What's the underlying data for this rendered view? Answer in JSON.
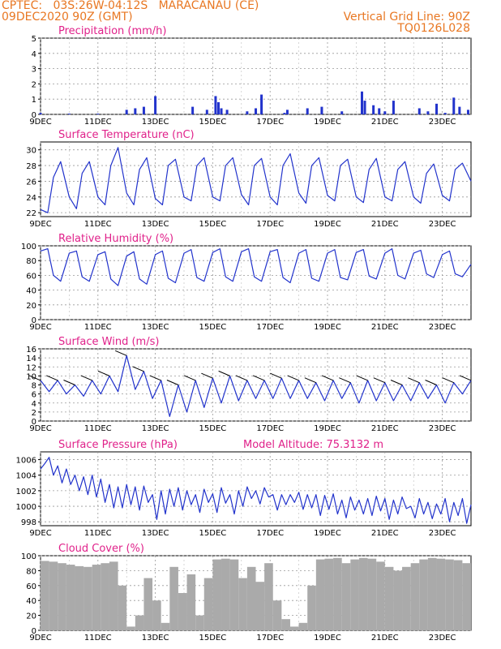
{
  "header": {
    "line1": "CPTEC:   03S:26W-04:12S   MARACANAU (CE)",
    "line2": "09DEC2020 90Z (GMT)",
    "vgrid": "Vertical Grid Line: 90Z",
    "model": "TQ0126L028"
  },
  "colors": {
    "header": "#e87722",
    "title": "#e0218a",
    "series": "#2233cc",
    "bars": "#aaaaaa"
  },
  "chart_data": [
    {
      "type": "bar",
      "title": "Precipitation (mm/h)",
      "x_labels": [
        "9DEC",
        "11DEC",
        "13DEC",
        "15DEC",
        "17DEC",
        "19DEC",
        "21DEC",
        "23DEC"
      ],
      "ylim": [
        0,
        5
      ],
      "y_ticks": [
        "0",
        "1",
        "2",
        "3",
        "4",
        "5"
      ],
      "grid": true,
      "x": [
        0,
        1,
        2,
        3,
        3.3,
        3.6,
        4,
        5.3,
        5.8,
        6.1,
        6.2,
        6.3,
        6.5,
        7.2,
        7.5,
        7.7,
        8.5,
        8.6,
        9.3,
        9.8,
        10.5,
        11.2,
        11.3,
        11.6,
        11.8,
        12,
        12.3,
        13.2,
        13.5,
        13.8,
        14.1,
        14.4,
        14.6,
        14.9
      ],
      "values": [
        0.1,
        0.05,
        0.05,
        0.3,
        0.4,
        0.5,
        1.2,
        0.5,
        0.3,
        1.2,
        0.8,
        0.4,
        0.3,
        0.2,
        0.4,
        1.3,
        0.1,
        0.3,
        0.4,
        0.5,
        0.2,
        1.5,
        0.9,
        0.6,
        0.4,
        0.2,
        0.9,
        0.4,
        0.2,
        0.7,
        0.1,
        1.1,
        0.5,
        0.3
      ]
    },
    {
      "type": "line",
      "title": "Surface Temperature (nC)",
      "x_labels": [
        "9DEC",
        "11DEC",
        "13DEC",
        "15DEC",
        "17DEC",
        "19DEC",
        "21DEC",
        "23DEC"
      ],
      "ylim": [
        21.5,
        31
      ],
      "y_ticks": [
        "22",
        "24",
        "26",
        "28",
        "30"
      ],
      "grid": true,
      "x": [
        0,
        0.25,
        0.45,
        0.7,
        1,
        1.25,
        1.45,
        1.7,
        2,
        2.25,
        2.45,
        2.7,
        3,
        3.25,
        3.45,
        3.7,
        4,
        4.25,
        4.45,
        4.7,
        5,
        5.25,
        5.45,
        5.7,
        6,
        6.25,
        6.45,
        6.7,
        7,
        7.25,
        7.45,
        7.7,
        8,
        8.25,
        8.45,
        8.7,
        9,
        9.25,
        9.45,
        9.7,
        10,
        10.25,
        10.45,
        10.7,
        11,
        11.25,
        11.45,
        11.7,
        12,
        12.25,
        12.45,
        12.7,
        13,
        13.25,
        13.45,
        13.7,
        14,
        14.25,
        14.45,
        14.7,
        15
      ],
      "values": [
        22.4,
        22.0,
        26.5,
        28.5,
        24.0,
        22.5,
        27.0,
        28.5,
        24.0,
        23.0,
        28.0,
        30.3,
        24.5,
        23.0,
        27.5,
        29.0,
        23.8,
        23.0,
        28.0,
        28.8,
        24.0,
        23.5,
        28.0,
        29.0,
        24.0,
        23.5,
        28.0,
        29.0,
        24.3,
        23.0,
        28.0,
        28.9,
        24.0,
        23.0,
        28.0,
        29.5,
        24.5,
        23.2,
        28.0,
        29.0,
        24.2,
        23.5,
        28.0,
        28.8,
        24.0,
        23.3,
        27.5,
        28.9,
        24.0,
        23.5,
        27.5,
        28.5,
        24.0,
        23.2,
        27.0,
        28.2,
        24.2,
        23.5,
        27.5,
        28.3,
        26.0
      ]
    },
    {
      "type": "line",
      "title": "Relative Humidity (%)",
      "x_labels": [
        "9DEC",
        "11DEC",
        "13DEC",
        "15DEC",
        "17DEC",
        "19DEC",
        "21DEC",
        "23DEC"
      ],
      "ylim": [
        0,
        100
      ],
      "y_ticks": [
        "0",
        "20",
        "40",
        "60",
        "80",
        "100"
      ],
      "grid": true,
      "x": [
        0,
        0.25,
        0.45,
        0.7,
        1,
        1.25,
        1.45,
        1.7,
        2,
        2.25,
        2.45,
        2.7,
        3,
        3.25,
        3.45,
        3.7,
        4,
        4.25,
        4.45,
        4.7,
        5,
        5.25,
        5.45,
        5.7,
        6,
        6.25,
        6.45,
        6.7,
        7,
        7.25,
        7.45,
        7.7,
        8,
        8.25,
        8.45,
        8.7,
        9,
        9.25,
        9.45,
        9.7,
        10,
        10.25,
        10.45,
        10.7,
        11,
        11.25,
        11.45,
        11.7,
        12,
        12.25,
        12.45,
        12.7,
        13,
        13.25,
        13.45,
        13.7,
        14,
        14.25,
        14.45,
        14.7,
        15
      ],
      "values": [
        93,
        96,
        60,
        52,
        90,
        93,
        58,
        52,
        88,
        92,
        55,
        46,
        86,
        92,
        55,
        48,
        88,
        93,
        56,
        50,
        90,
        95,
        57,
        52,
        91,
        96,
        58,
        52,
        92,
        96,
        58,
        52,
        92,
        95,
        57,
        50,
        90,
        95,
        56,
        52,
        90,
        95,
        57,
        54,
        91,
        95,
        59,
        55,
        90,
        96,
        60,
        55,
        90,
        94,
        62,
        57,
        88,
        93,
        62,
        58,
        75
      ]
    },
    {
      "type": "line",
      "title": "Surface Wind (m/s)",
      "x_labels": [
        "9DEC",
        "11DEC",
        "13DEC",
        "15DEC",
        "17DEC",
        "19DEC",
        "21DEC",
        "23DEC"
      ],
      "ylim": [
        0,
        16
      ],
      "y_ticks": [
        "0",
        "2",
        "4",
        "6",
        "8",
        "10",
        "12",
        "14",
        "16"
      ],
      "grid": true,
      "x": [
        0,
        0.3,
        0.6,
        0.9,
        1.2,
        1.5,
        1.8,
        2.1,
        2.4,
        2.7,
        3,
        3.3,
        3.6,
        3.9,
        4.2,
        4.5,
        4.8,
        5.1,
        5.4,
        5.7,
        6,
        6.3,
        6.6,
        6.9,
        7.2,
        7.5,
        7.8,
        8.1,
        8.4,
        8.7,
        9,
        9.3,
        9.6,
        9.9,
        10.2,
        10.5,
        10.8,
        11.1,
        11.4,
        11.7,
        12,
        12.3,
        12.6,
        12.9,
        13.2,
        13.5,
        13.8,
        14.1,
        14.4,
        14.7,
        15
      ],
      "values": [
        9,
        6.5,
        9,
        6,
        8,
        5.5,
        9,
        6,
        10,
        6.5,
        14.5,
        7,
        11,
        5,
        9,
        1,
        8,
        2,
        9,
        3,
        9.5,
        4,
        10,
        4.5,
        9,
        5,
        9,
        5,
        9.5,
        5,
        9,
        5,
        8.5,
        4.5,
        9,
        5,
        8.5,
        4,
        9,
        4.5,
        8.5,
        4.5,
        8,
        4.5,
        8.5,
        5,
        8,
        4,
        8.5,
        6,
        9
      ]
    },
    {
      "type": "line",
      "title": "Surface Pressure (hPa)",
      "x_labels": [
        "9DEC",
        "11DEC",
        "13DEC",
        "15DEC",
        "17DEC",
        "19DEC",
        "21DEC",
        "23DEC"
      ],
      "ylim": [
        997.5,
        1007
      ],
      "y_ticks": [
        "998",
        "1000",
        "1002",
        "1004",
        "1006"
      ],
      "grid": true,
      "x": [
        0,
        0.15,
        0.3,
        0.45,
        0.6,
        0.75,
        0.9,
        1.05,
        1.2,
        1.35,
        1.5,
        1.65,
        1.8,
        1.95,
        2.1,
        2.25,
        2.4,
        2.55,
        2.7,
        2.85,
        3,
        3.15,
        3.3,
        3.45,
        3.6,
        3.75,
        3.9,
        4.05,
        4.2,
        4.35,
        4.5,
        4.65,
        4.8,
        4.95,
        5.1,
        5.25,
        5.4,
        5.55,
        5.7,
        5.85,
        6,
        6.15,
        6.3,
        6.45,
        6.6,
        6.75,
        6.9,
        7.05,
        7.2,
        7.35,
        7.5,
        7.65,
        7.8,
        7.95,
        8.1,
        8.25,
        8.4,
        8.55,
        8.7,
        8.85,
        9,
        9.15,
        9.3,
        9.45,
        9.6,
        9.75,
        9.9,
        10.05,
        10.2,
        10.35,
        10.5,
        10.65,
        10.8,
        10.95,
        11.1,
        11.25,
        11.4,
        11.55,
        11.7,
        11.85,
        12,
        12.15,
        12.3,
        12.45,
        12.6,
        12.75,
        12.9,
        13.05,
        13.2,
        13.35,
        13.5,
        13.65,
        13.8,
        13.95,
        14.1,
        14.25,
        14.4,
        14.55,
        14.7,
        14.85,
        15
      ],
      "values": [
        1004.8,
        1005.5,
        1006.3,
        1004.0,
        1005.2,
        1003.0,
        1004.8,
        1002.8,
        1004.0,
        1002.0,
        1003.8,
        1001.5,
        1004.0,
        1001.2,
        1003.5,
        1000.5,
        1002.8,
        999.8,
        1002.5,
        999.8,
        1002.8,
        1000.2,
        1002.5,
        999.5,
        1002.6,
        1000.5,
        1001.5,
        998.3,
        1002.0,
        999.0,
        1002.2,
        1000.0,
        1002.4,
        999.5,
        1002.0,
        1000.2,
        1001.5,
        999.2,
        1002.2,
        1000.5,
        1001.6,
        999.2,
        1002.4,
        1000.4,
        1001.5,
        999.0,
        1002.0,
        1000.0,
        1002.5,
        1001.0,
        1002.0,
        1000.3,
        1002.4,
        1001.2,
        1001.5,
        999.5,
        1001.5,
        1000.2,
        1001.5,
        1000.5,
        1001.8,
        999.6,
        1001.5,
        999.8,
        1001.5,
        998.8,
        1001.4,
        999.6,
        1001.6,
        999.0,
        1000.8,
        998.5,
        1001.2,
        999.5,
        1000.8,
        999.0,
        1001.0,
        998.8,
        1001.3,
        999.4,
        1001.0,
        998.3,
        1000.8,
        999.0,
        1001.2,
        999.7,
        1000.0,
        998.5,
        1001.0,
        999.0,
        1000.5,
        998.4,
        1000.3,
        999.0,
        1001.0,
        998.0,
        1000.5,
        998.8,
        1001.0,
        997.8,
        1000.2
      ]
    },
    {
      "type": "bar",
      "title": "Cloud Cover (%)",
      "x_labels": [
        "9DEC",
        "11DEC",
        "13DEC",
        "15DEC",
        "17DEC",
        "19DEC",
        "21DEC",
        "23DEC"
      ],
      "ylim": [
        0,
        100
      ],
      "y_ticks": [
        "0",
        "20",
        "40",
        "60",
        "80",
        "100"
      ],
      "grid": true,
      "x": [
        0,
        0.3,
        0.6,
        0.9,
        1.2,
        1.5,
        1.8,
        2.1,
        2.4,
        2.7,
        3,
        3.3,
        3.6,
        3.9,
        4.2,
        4.5,
        4.8,
        5.1,
        5.4,
        5.7,
        6,
        6.3,
        6.6,
        6.9,
        7.2,
        7.5,
        7.8,
        8.1,
        8.4,
        8.7,
        9,
        9.3,
        9.6,
        9.9,
        10.2,
        10.5,
        10.8,
        11.1,
        11.4,
        11.7,
        12,
        12.3,
        12.6,
        12.9,
        13.2,
        13.5,
        13.8,
        14.1,
        14.4,
        14.7
      ],
      "values": [
        93,
        92,
        90,
        88,
        86,
        85,
        88,
        90,
        92,
        60,
        5,
        20,
        70,
        40,
        10,
        85,
        50,
        75,
        20,
        70,
        95,
        96,
        95,
        70,
        85,
        65,
        90,
        40,
        15,
        5,
        10,
        60,
        95,
        96,
        97,
        90,
        95,
        97,
        96,
        92,
        85,
        80,
        85,
        90,
        95,
        97,
        96,
        95,
        94,
        90
      ]
    }
  ],
  "panel_extra": {
    "altitude": "Model Altitude: 75.3132 m"
  }
}
